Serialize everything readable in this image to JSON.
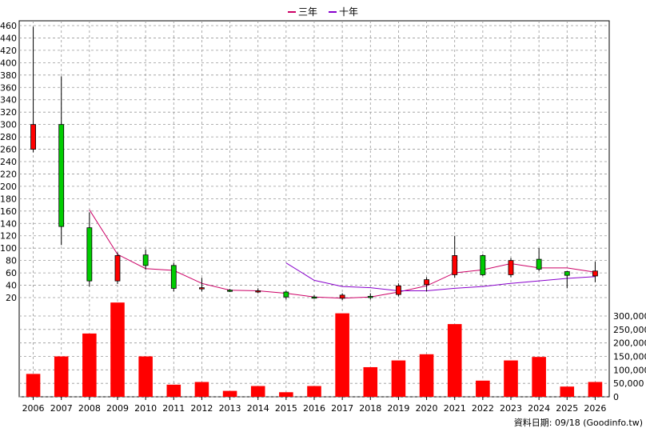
{
  "legend": {
    "items": [
      {
        "label": "三年",
        "color": "#cc0066"
      },
      {
        "label": "十年",
        "color": "#8800cc"
      }
    ]
  },
  "source": "資料日期: 09/18  (Goodinfo.tw)",
  "colors": {
    "up": "#ff0000",
    "down": "#00cc00",
    "volume": "#ff0000",
    "grid": "#999999"
  },
  "chart_data": {
    "type": "candlestick",
    "x": [
      "2006",
      "2007",
      "2008",
      "2009",
      "2010",
      "2011",
      "2012",
      "2013",
      "2014",
      "2015",
      "2016",
      "2017",
      "2018",
      "2019",
      "2020",
      "2021",
      "2022",
      "2023",
      "2024",
      "2025",
      "2026"
    ],
    "ohlc": [
      {
        "open": 260,
        "high": 458,
        "low": 255,
        "close": 300
      },
      {
        "open": 300,
        "high": 378,
        "low": 105,
        "close": 135
      },
      {
        "open": 133,
        "high": 158,
        "low": 38,
        "close": 47
      },
      {
        "open": 47,
        "high": 93,
        "low": 42,
        "close": 88
      },
      {
        "open": 89,
        "high": 98,
        "low": 65,
        "close": 72
      },
      {
        "open": 72,
        "high": 76,
        "low": 30,
        "close": 35
      },
      {
        "open": 36,
        "high": 52,
        "low": 30,
        "close": 36
      },
      {
        "open": 32,
        "high": 34,
        "low": 29,
        "close": 31
      },
      {
        "open": 31,
        "high": 35,
        "low": 27,
        "close": 31
      },
      {
        "open": 29,
        "high": 31,
        "low": 17,
        "close": 21
      },
      {
        "open": 21,
        "high": 24,
        "low": 18,
        "close": 20
      },
      {
        "open": 19,
        "high": 27,
        "low": 16,
        "close": 24
      },
      {
        "open": 22,
        "high": 27,
        "low": 17,
        "close": 21
      },
      {
        "open": 25,
        "high": 43,
        "low": 22,
        "close": 39
      },
      {
        "open": 41,
        "high": 53,
        "low": 30,
        "close": 49
      },
      {
        "open": 57,
        "high": 120,
        "low": 52,
        "close": 88
      },
      {
        "open": 88,
        "high": 90,
        "low": 55,
        "close": 57
      },
      {
        "open": 57,
        "high": 84,
        "low": 53,
        "close": 80
      },
      {
        "open": 82,
        "high": 100,
        "low": 63,
        "close": 66
      },
      {
        "open": 62,
        "high": 63,
        "low": 35,
        "close": 56
      },
      {
        "open": 55,
        "high": 78,
        "low": 45,
        "close": 63
      }
    ],
    "series": [
      {
        "name": "三年",
        "values": [
          null,
          null,
          162,
          90,
          67,
          64,
          43,
          32,
          31,
          27,
          21,
          19,
          21,
          29,
          39,
          60,
          65,
          75,
          68,
          68,
          61
        ]
      },
      {
        "name": "十年",
        "values": [
          null,
          null,
          null,
          null,
          null,
          null,
          null,
          null,
          null,
          76,
          48,
          38,
          36,
          31,
          31,
          35,
          38,
          43,
          47,
          51,
          54
        ]
      }
    ],
    "volume": [
      85000,
      150000,
      235000,
      350000,
      150000,
      45000,
      55000,
      22000,
      40000,
      17000,
      40000,
      310000,
      110000,
      135000,
      158000,
      270000,
      60000,
      135000,
      148000,
      38000,
      55000
    ],
    "price_axis": {
      "min": 20,
      "max": 460,
      "ticks": [
        20,
        40,
        60,
        80,
        100,
        120,
        140,
        160,
        180,
        200,
        220,
        240,
        260,
        280,
        300,
        320,
        340,
        360,
        380,
        400,
        420,
        440,
        460
      ]
    },
    "volume_axis": {
      "min": 0,
      "max": 300000,
      "ticks": [
        "0",
        "50,000",
        "100,000",
        "150,000",
        "200,000",
        "250,000",
        "300,000"
      ]
    },
    "grid": true,
    "legend_position": "top-center"
  }
}
